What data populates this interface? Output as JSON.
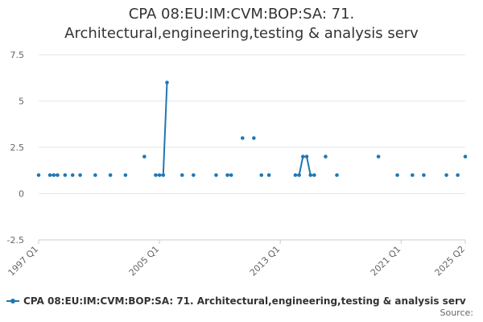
{
  "chart_data": {
    "type": "line",
    "title_lines": [
      "CPA 08:EU:IM:CVM:BOP:SA: 71.",
      "Architectural,engineering,testing & analysis serv"
    ],
    "xlabel": "",
    "ylabel": "",
    "ylim": [
      -2.5,
      7.5
    ],
    "yticks": [
      -2.5,
      0,
      2.5,
      5,
      7.5
    ],
    "yticklabels": [
      "-2.5",
      "0",
      "2.5",
      "5",
      "7.5"
    ],
    "xlim": [
      "1997 Q1",
      "2025 Q2"
    ],
    "xticks": [
      "1997 Q1",
      "2005 Q1",
      "2013 Q1",
      "2021 Q1",
      "2025 Q2"
    ],
    "grid": true,
    "legend_position": "bottom",
    "series": [
      {
        "name": "CPA 08:EU:IM:CVM:BOP:SA: 71. Architectural,engineering,testing & analysis serv",
        "color": "#1f77b4",
        "points": [
          [
            "1997 Q1",
            1
          ],
          [
            "1997 Q4",
            1
          ],
          [
            "1998 Q1",
            1
          ],
          [
            "1998 Q2",
            1
          ],
          [
            "1998 Q4",
            1
          ],
          [
            "1999 Q2",
            1
          ],
          [
            "1999 Q4",
            1
          ],
          [
            "2000 Q4",
            1
          ],
          [
            "2001 Q4",
            1
          ],
          [
            "2002 Q4",
            1
          ],
          [
            "2004 Q1",
            2
          ],
          [
            "2004 Q4",
            1
          ],
          [
            "2005 Q1",
            1
          ],
          [
            "2005 Q2",
            1
          ],
          [
            "2005 Q3",
            6
          ],
          [
            "2006 Q3",
            1
          ],
          [
            "2007 Q2",
            1
          ],
          [
            "2008 Q4",
            1
          ],
          [
            "2009 Q3",
            1
          ],
          [
            "2009 Q4",
            1
          ],
          [
            "2010 Q3",
            3
          ],
          [
            "2011 Q2",
            3
          ],
          [
            "2011 Q4",
            1
          ],
          [
            "2012 Q2",
            1
          ],
          [
            "2014 Q1",
            1
          ],
          [
            "2014 Q2",
            1
          ],
          [
            "2014 Q3",
            2
          ],
          [
            "2014 Q4",
            2
          ],
          [
            "2015 Q1",
            1
          ],
          [
            "2015 Q2",
            1
          ],
          [
            "2016 Q1",
            2
          ],
          [
            "2016 Q4",
            1
          ],
          [
            "2019 Q3",
            2
          ],
          [
            "2020 Q4",
            1
          ],
          [
            "2021 Q4",
            1
          ],
          [
            "2022 Q3",
            1
          ],
          [
            "2024 Q1",
            1
          ],
          [
            "2024 Q4",
            1
          ],
          [
            "2025 Q2",
            2
          ]
        ]
      }
    ]
  },
  "source_label": "Source:"
}
